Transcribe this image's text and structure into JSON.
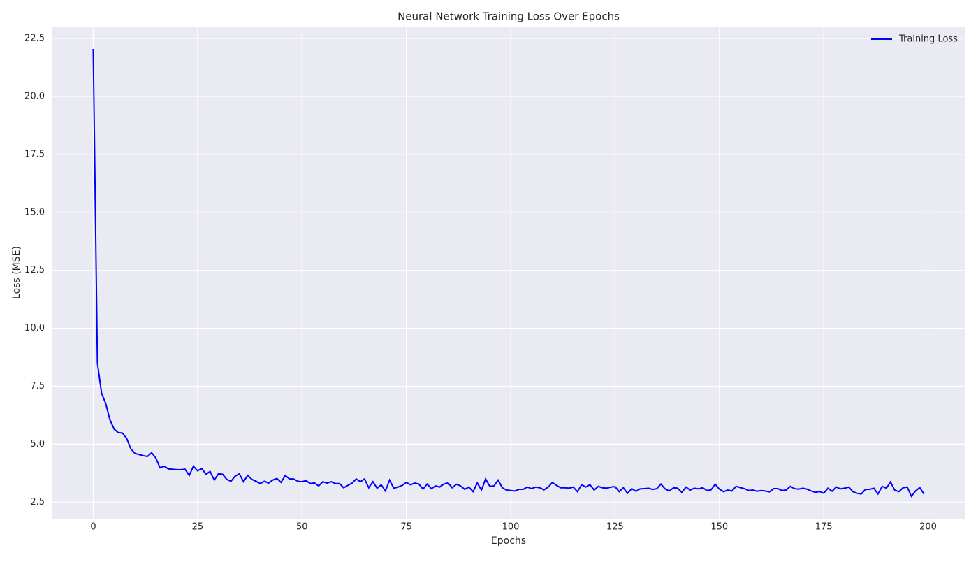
{
  "chart_data": {
    "type": "line",
    "title": "Neural Network Training Loss Over Epochs",
    "x_label": "Epochs",
    "y_label": "Loss (MSE)",
    "x": [
      0,
      1,
      2,
      3,
      4,
      5,
      6,
      7,
      8,
      9,
      10,
      11,
      12,
      13,
      14,
      15,
      16,
      17,
      18,
      19,
      20,
      21,
      22,
      23,
      24,
      25,
      26,
      27,
      28,
      29,
      30,
      31,
      32,
      33,
      34,
      35,
      36,
      37,
      38,
      39,
      40,
      41,
      42,
      43,
      44,
      45,
      46,
      47,
      48,
      49,
      50,
      51,
      52,
      53,
      54,
      55,
      56,
      57,
      58,
      59,
      60,
      61,
      62,
      63,
      64,
      65,
      66,
      67,
      68,
      69,
      70,
      71,
      72,
      73,
      74,
      75,
      76,
      77,
      78,
      79,
      80,
      81,
      82,
      83,
      84,
      85,
      86,
      87,
      88,
      89,
      90,
      91,
      92,
      93,
      94,
      95,
      96,
      97,
      98,
      99,
      100,
      101,
      102,
      103,
      104,
      105,
      106,
      107,
      108,
      109,
      110,
      111,
      112,
      113,
      114,
      115,
      116,
      117,
      118,
      119,
      120,
      121,
      122,
      123,
      124,
      125,
      126,
      127,
      128,
      129,
      130,
      131,
      132,
      133,
      134,
      135,
      136,
      137,
      138,
      139,
      140,
      141,
      142,
      143,
      144,
      145,
      146,
      147,
      148,
      149,
      150,
      151,
      152,
      153,
      154,
      155,
      156,
      157,
      158,
      159,
      160,
      161,
      162,
      163,
      164,
      165,
      166,
      167,
      168,
      169,
      170,
      171,
      172,
      173,
      174,
      175,
      176,
      177,
      178,
      179,
      180,
      181,
      182,
      183,
      184,
      185,
      186,
      187,
      188,
      189,
      190,
      191,
      192,
      193,
      194,
      195,
      196,
      197,
      198,
      199
    ],
    "series": [
      {
        "name": "Training Loss",
        "color": "#0000ff",
        "values": [
          22.05,
          8.5,
          7.2,
          6.75,
          6.05,
          5.65,
          5.5,
          5.48,
          5.25,
          4.8,
          4.6,
          4.55,
          4.5,
          4.47,
          4.63,
          4.4,
          3.98,
          4.05,
          3.93,
          3.92,
          3.9,
          3.9,
          3.92,
          3.65,
          4.05,
          3.85,
          3.95,
          3.7,
          3.82,
          3.45,
          3.72,
          3.7,
          3.48,
          3.4,
          3.62,
          3.72,
          3.38,
          3.65,
          3.48,
          3.4,
          3.3,
          3.4,
          3.32,
          3.45,
          3.52,
          3.35,
          3.65,
          3.5,
          3.5,
          3.4,
          3.38,
          3.43,
          3.3,
          3.33,
          3.2,
          3.38,
          3.32,
          3.38,
          3.3,
          3.3,
          3.12,
          3.22,
          3.32,
          3.5,
          3.38,
          3.5,
          3.12,
          3.38,
          3.1,
          3.25,
          2.98,
          3.45,
          3.1,
          3.15,
          3.22,
          3.35,
          3.25,
          3.32,
          3.28,
          3.06,
          3.28,
          3.08,
          3.2,
          3.15,
          3.28,
          3.33,
          3.12,
          3.27,
          3.2,
          3.05,
          3.15,
          2.95,
          3.33,
          3.02,
          3.5,
          3.18,
          3.2,
          3.45,
          3.12,
          3.02,
          3.0,
          2.98,
          3.05,
          3.05,
          3.15,
          3.08,
          3.15,
          3.12,
          3.03,
          3.15,
          3.35,
          3.22,
          3.12,
          3.12,
          3.1,
          3.15,
          2.95,
          3.25,
          3.15,
          3.25,
          3.02,
          3.18,
          3.12,
          3.1,
          3.15,
          3.17,
          2.95,
          3.12,
          2.88,
          3.08,
          2.97,
          3.07,
          3.08,
          3.1,
          3.05,
          3.08,
          3.28,
          3.07,
          2.98,
          3.12,
          3.1,
          2.92,
          3.15,
          3.02,
          3.1,
          3.07,
          3.12,
          3.0,
          3.03,
          3.27,
          3.06,
          2.95,
          3.02,
          2.98,
          3.18,
          3.13,
          3.08,
          3.0,
          3.02,
          2.97,
          3.0,
          2.98,
          2.94,
          3.08,
          3.08,
          3.0,
          3.02,
          3.18,
          3.08,
          3.06,
          3.1,
          3.06,
          2.98,
          2.92,
          2.96,
          2.88,
          3.1,
          2.97,
          3.15,
          3.07,
          3.1,
          3.15,
          2.95,
          2.88,
          2.85,
          3.05,
          3.05,
          3.1,
          2.85,
          3.18,
          3.1,
          3.37,
          3.02,
          2.95,
          3.12,
          3.15,
          2.75,
          2.98,
          3.13,
          2.85
        ]
      }
    ],
    "xlim": [
      -9.95,
      208.95
    ],
    "ylim": [
      1.785,
      23.015
    ],
    "xticks": [
      0,
      25,
      50,
      75,
      100,
      125,
      150,
      175,
      200
    ],
    "yticks": [
      2.5,
      {
        "value": 5,
        "label": "5.0"
      },
      7.5,
      {
        "value": 10,
        "label": "10.0"
      },
      12.5,
      {
        "value": 15,
        "label": "15.0"
      },
      17.5,
      {
        "value": 20,
        "label": "20.0"
      },
      22.5
    ],
    "grid": true,
    "legend": "upper right"
  }
}
